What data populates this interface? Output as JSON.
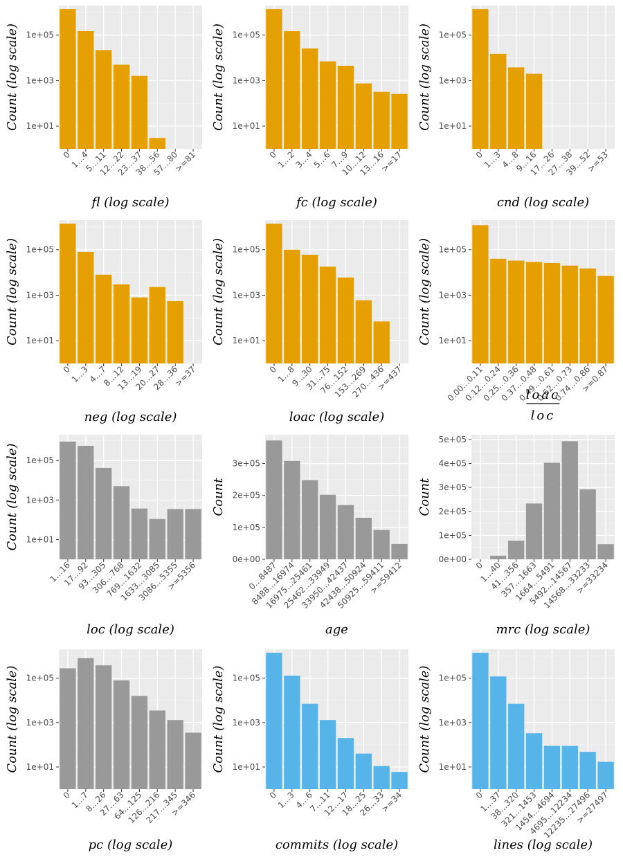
{
  "colors": {
    "orange": "#E69F00",
    "grey": "#999999",
    "blue": "#56B4E9",
    "panel": "#EBEBEB",
    "grid": "#FFFFFF"
  },
  "chart_data": [
    {
      "type": "bar",
      "color": "orange",
      "scale": "log",
      "ylabel": "Count (log scale)",
      "xlabel": "fl (log scale)",
      "ytick_labels": [
        "1e+01",
        "1e+03",
        "1e+05"
      ],
      "yticks": [
        10,
        1000,
        100000
      ],
      "ylim": [
        1,
        2000000
      ],
      "categories": [
        "0",
        "1…4",
        "5…11",
        "12…22",
        "23…37",
        "38…56",
        "57…80",
        ">=81"
      ],
      "values": [
        1400000,
        150000,
        22000,
        5000,
        1600,
        3,
        0,
        0
      ]
    },
    {
      "type": "bar",
      "color": "orange",
      "scale": "log",
      "ylabel": "Count (log scale)",
      "xlabel": "fc (log scale)",
      "ytick_labels": [
        "1e+01",
        "1e+03",
        "1e+05"
      ],
      "yticks": [
        10,
        1000,
        100000
      ],
      "ylim": [
        1,
        2000000
      ],
      "categories": [
        "0",
        "1…2",
        "3…4",
        "5…6",
        "7…9",
        "10…12",
        "13…16",
        ">=17"
      ],
      "values": [
        1400000,
        150000,
        26000,
        7000,
        4500,
        750,
        320,
        260
      ]
    },
    {
      "type": "bar",
      "color": "orange",
      "scale": "log",
      "ylabel": "Count (log scale)",
      "xlabel": "cnd (log scale)",
      "ytick_labels": [
        "1e+01",
        "1e+03",
        "1e+05"
      ],
      "yticks": [
        10,
        1000,
        100000
      ],
      "ylim": [
        1,
        2000000
      ],
      "categories": [
        "0",
        "1…3",
        "4…8",
        "9…16",
        "17…26",
        "27…38",
        "39…52",
        ">=53"
      ],
      "values": [
        1400000,
        15000,
        3800,
        2000,
        0,
        0,
        0,
        0
      ]
    },
    {
      "type": "bar",
      "color": "orange",
      "scale": "log",
      "ylabel": "Count (log scale)",
      "xlabel": "neg (log scale)",
      "ytick_labels": [
        "1e+01",
        "1e+03",
        "1e+05"
      ],
      "yticks": [
        10,
        1000,
        100000
      ],
      "ylim": [
        1,
        2000000
      ],
      "categories": [
        "0",
        "1…3",
        "4…7",
        "8…12",
        "13…19",
        "20…27",
        "28…36",
        ">=37"
      ],
      "values": [
        1400000,
        80000,
        8000,
        3000,
        800,
        2300,
        550,
        0
      ]
    },
    {
      "type": "bar",
      "color": "orange",
      "scale": "log",
      "ylabel": "Count (log scale)",
      "xlabel": "loac (log scale)",
      "ytick_labels": [
        "1e+01",
        "1e+03",
        "1e+05"
      ],
      "yticks": [
        10,
        1000,
        100000
      ],
      "ylim": [
        1,
        2000000
      ],
      "categories": [
        "0",
        "1…8",
        "9…30",
        "31…75",
        "76…152",
        "153…269",
        "270…436",
        ">=437"
      ],
      "values": [
        1400000,
        100000,
        60000,
        18000,
        6000,
        600,
        70,
        0
      ]
    },
    {
      "type": "bar",
      "color": "orange",
      "scale": "log",
      "ylabel": "Count (log scale)",
      "xlabel": "",
      "xlabel_num": "loac",
      "xlabel_den": "loc",
      "ytick_labels": [
        "1e+01",
        "1e+03",
        "1e+05"
      ],
      "yticks": [
        10,
        1000,
        100000
      ],
      "ylim": [
        1,
        2000000
      ],
      "categories": [
        "0.00…0.11",
        "0.12…0.24",
        "0.25…0.36",
        "0.37…0.48",
        "0.49…0.61",
        "0.62…0.73",
        "0.74…0.86",
        ">=0.87"
      ],
      "values": [
        1200000,
        40000,
        33000,
        29000,
        26000,
        20000,
        15000,
        7000
      ]
    },
    {
      "type": "bar",
      "color": "grey",
      "scale": "log",
      "ylabel": "Count (log scale)",
      "xlabel": "loc (log scale)",
      "ytick_labels": [
        "1e+01",
        "1e+03",
        "1e+05"
      ],
      "yticks": [
        10,
        1000,
        100000
      ],
      "ylim": [
        1,
        2000000
      ],
      "categories": [
        "1…16",
        "17…92",
        "93…305",
        "306…768",
        "769…1632",
        "1633…3085",
        "3086…5355",
        ">=5356"
      ],
      "values": [
        900000,
        550000,
        42000,
        5000,
        370,
        110,
        350,
        350
      ]
    },
    {
      "type": "bar",
      "color": "grey",
      "scale": "linear",
      "ylabel": "Count",
      "xlabel": "age",
      "ytick_labels": [
        "0e+00",
        "1e+05",
        "2e+05",
        "3e+05"
      ],
      "yticks": [
        0,
        100000,
        200000,
        300000
      ],
      "ylim": [
        0,
        390000
      ],
      "categories": [
        "0…8487",
        "8488…16974",
        "16975…25461",
        "25462…33949",
        "33950…42437",
        "42438…50924",
        "50925…59411",
        ">=59412"
      ],
      "values": [
        372000,
        308000,
        248000,
        202000,
        170000,
        130000,
        92000,
        48000
      ]
    },
    {
      "type": "bar",
      "color": "grey",
      "scale": "linear",
      "ylabel": "Count",
      "xlabel": "mrc (log scale)",
      "ytick_labels": [
        "0e+00",
        "1e+05",
        "2e+05",
        "3e+05",
        "4e+05",
        "5e+05"
      ],
      "yticks": [
        0,
        100000,
        200000,
        300000,
        400000,
        500000
      ],
      "ylim": [
        0,
        520000
      ],
      "categories": [
        "0",
        "1…40",
        "41…356",
        "357…1663",
        "1664…5491",
        "5492…14567",
        "14568…33233",
        ">=33234"
      ],
      "values": [
        0,
        15000,
        78000,
        233000,
        403000,
        493000,
        292000,
        63000
      ]
    },
    {
      "type": "bar",
      "color": "grey",
      "scale": "log",
      "ylabel": "Count (log scale)",
      "xlabel": "pc (log scale)",
      "ytick_labels": [
        "1e+01",
        "1e+03",
        "1e+05"
      ],
      "yticks": [
        10,
        1000,
        100000
      ],
      "ylim": [
        1,
        2000000
      ],
      "categories": [
        "0",
        "1…7",
        "8…26",
        "27…63",
        "64…125",
        "126…216",
        "217…345",
        ">=346"
      ],
      "values": [
        280000,
        800000,
        380000,
        80000,
        16000,
        3500,
        1300,
        350
      ]
    },
    {
      "type": "bar",
      "color": "blue",
      "scale": "log",
      "ylabel": "Count (log scale)",
      "xlabel": "commits (log scale)",
      "ytick_labels": [
        "1e+01",
        "1e+03",
        "1e+05"
      ],
      "yticks": [
        10,
        1000,
        100000
      ],
      "ylim": [
        1,
        2000000
      ],
      "categories": [
        "0",
        "1…3",
        "4…6",
        "7…11",
        "12…17",
        "18…25",
        "26…33",
        ">=34"
      ],
      "values": [
        1400000,
        130000,
        7000,
        1300,
        200,
        40,
        11,
        6
      ]
    },
    {
      "type": "bar",
      "color": "blue",
      "scale": "log",
      "ylabel": "Count (log scale)",
      "xlabel": "lines (log scale)",
      "ytick_labels": [
        "1e+01",
        "1e+03",
        "1e+05"
      ],
      "yticks": [
        10,
        1000,
        100000
      ],
      "ylim": [
        1,
        2000000
      ],
      "categories": [
        "0",
        "1…37",
        "38…320",
        "321…1453",
        "1454…4694",
        "4695…12234",
        "12235…27496",
        ">=27497"
      ],
      "values": [
        1400000,
        120000,
        7000,
        330,
        90,
        90,
        48,
        17
      ]
    }
  ]
}
